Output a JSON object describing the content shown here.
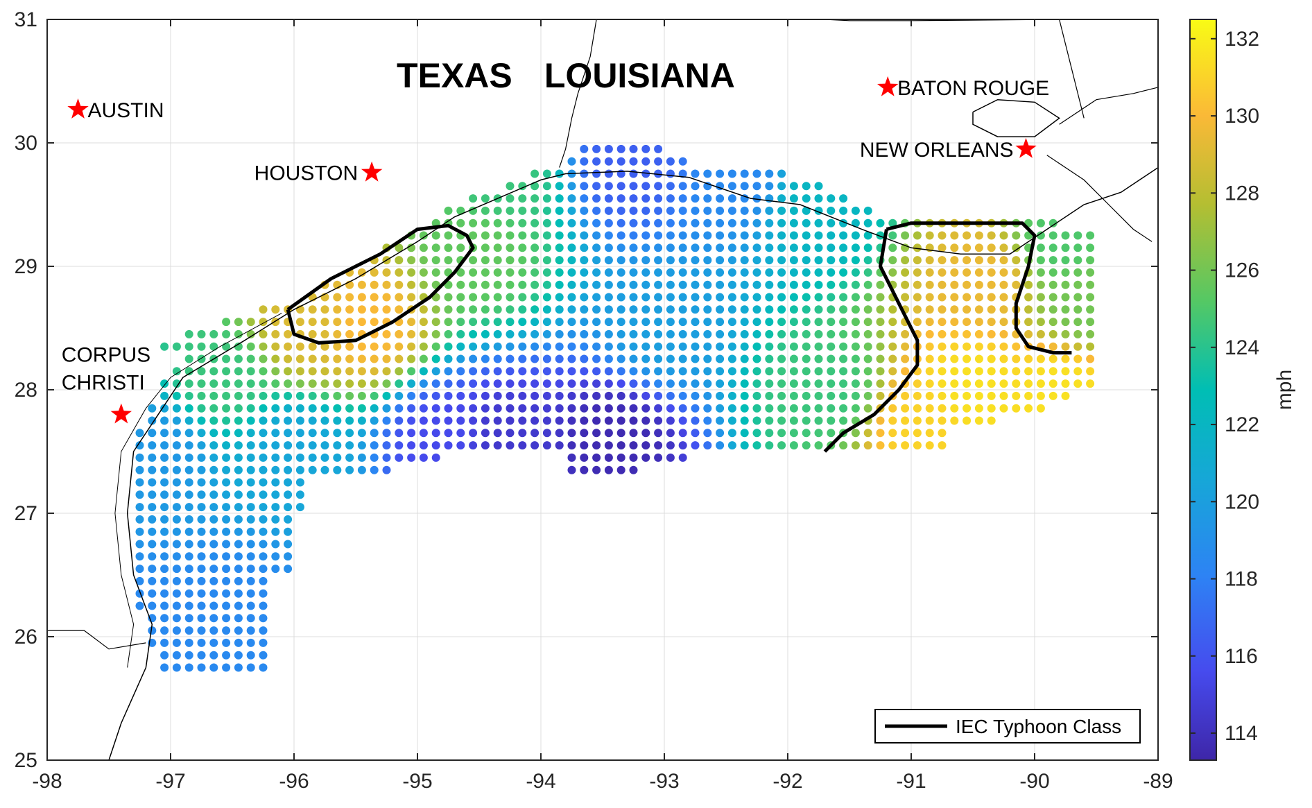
{
  "chart_data": {
    "type": "scatter",
    "title": "",
    "xlabel": "",
    "ylabel": "",
    "xlim": [
      -98,
      -89
    ],
    "ylim": [
      25,
      31
    ],
    "x_ticks": [
      "-98",
      "-97",
      "-96",
      "-95",
      "-94",
      "-93",
      "-92",
      "-91",
      "-90",
      "-89"
    ],
    "y_ticks": [
      "25",
      "26",
      "27",
      "28",
      "29",
      "30",
      "31"
    ],
    "grid": true,
    "colorbar": {
      "label": "mph",
      "range": [
        113.3,
        132.5
      ],
      "ticks": [
        "114",
        "116",
        "118",
        "120",
        "122",
        "124",
        "126",
        "128",
        "130",
        "132"
      ],
      "colormap": "parula"
    },
    "value_points": [
      {
        "lon": -93.4,
        "lat": 27.6,
        "mph": 113.6
      },
      {
        "lon": -94.3,
        "lat": 27.6,
        "mph": 114.5
      },
      {
        "lon": -94.8,
        "lat": 27.6,
        "mph": 115.5
      },
      {
        "lon": -97.1,
        "lat": 26.0,
        "mph": 118.5
      },
      {
        "lon": -96.5,
        "lat": 26.2,
        "mph": 118.5
      },
      {
        "lon": -97.1,
        "lat": 27.5,
        "mph": 119.5
      },
      {
        "lon": -96.0,
        "lat": 27.5,
        "mph": 120.5
      },
      {
        "lon": -93.3,
        "lat": 29.8,
        "mph": 116.5
      },
      {
        "lon": -92.4,
        "lat": 29.7,
        "mph": 118.5
      },
      {
        "lon": -93.0,
        "lat": 28.5,
        "mph": 120.0
      },
      {
        "lon": -91.7,
        "lat": 28.0,
        "mph": 124.5
      },
      {
        "lon": -91.8,
        "lat": 29.5,
        "mph": 122.0
      },
      {
        "lon": -95.4,
        "lat": 28.5,
        "mph": 130.0
      },
      {
        "lon": -95.9,
        "lat": 28.5,
        "mph": 129.0
      },
      {
        "lon": -96.6,
        "lat": 28.1,
        "mph": 124.5
      },
      {
        "lon": -94.5,
        "lat": 29.1,
        "mph": 125.5
      },
      {
        "lon": -94.3,
        "lat": 29.7,
        "mph": 124.5
      },
      {
        "lon": -90.4,
        "lat": 28.9,
        "mph": 129.5
      },
      {
        "lon": -90.5,
        "lat": 28.0,
        "mph": 131.5
      },
      {
        "lon": -89.8,
        "lat": 28.0,
        "mph": 131.5
      },
      {
        "lon": -90.9,
        "lat": 27.7,
        "mph": 131.0
      },
      {
        "lon": -89.8,
        "lat": 29.2,
        "mph": 125.0
      },
      {
        "lon": -89.6,
        "lat": 28.7,
        "mph": 126.0
      }
    ],
    "grid_spacing_deg": 0.1,
    "region_labels": [
      "TEXAS",
      "LOUISIANA"
    ],
    "cities": [
      {
        "name": "AUSTIN",
        "lon": -97.75,
        "lat": 30.27
      },
      {
        "name": "HOUSTON",
        "lon": -95.37,
        "lat": 29.76
      },
      {
        "name": "BATON ROUGE",
        "lon": -91.19,
        "lat": 30.45
      },
      {
        "name": "NEW ORLEANS",
        "lon": -90.07,
        "lat": 29.95
      },
      {
        "name": "CORPUS CHRISTI",
        "lon": -97.4,
        "lat": 27.8
      }
    ],
    "legend": {
      "entries": [
        "IEC Typhoon Class"
      ],
      "position": "bottom-right"
    },
    "colors": {
      "city_marker": "#ff0000",
      "contour": "#000000",
      "grid": "#dcdcdc"
    }
  }
}
